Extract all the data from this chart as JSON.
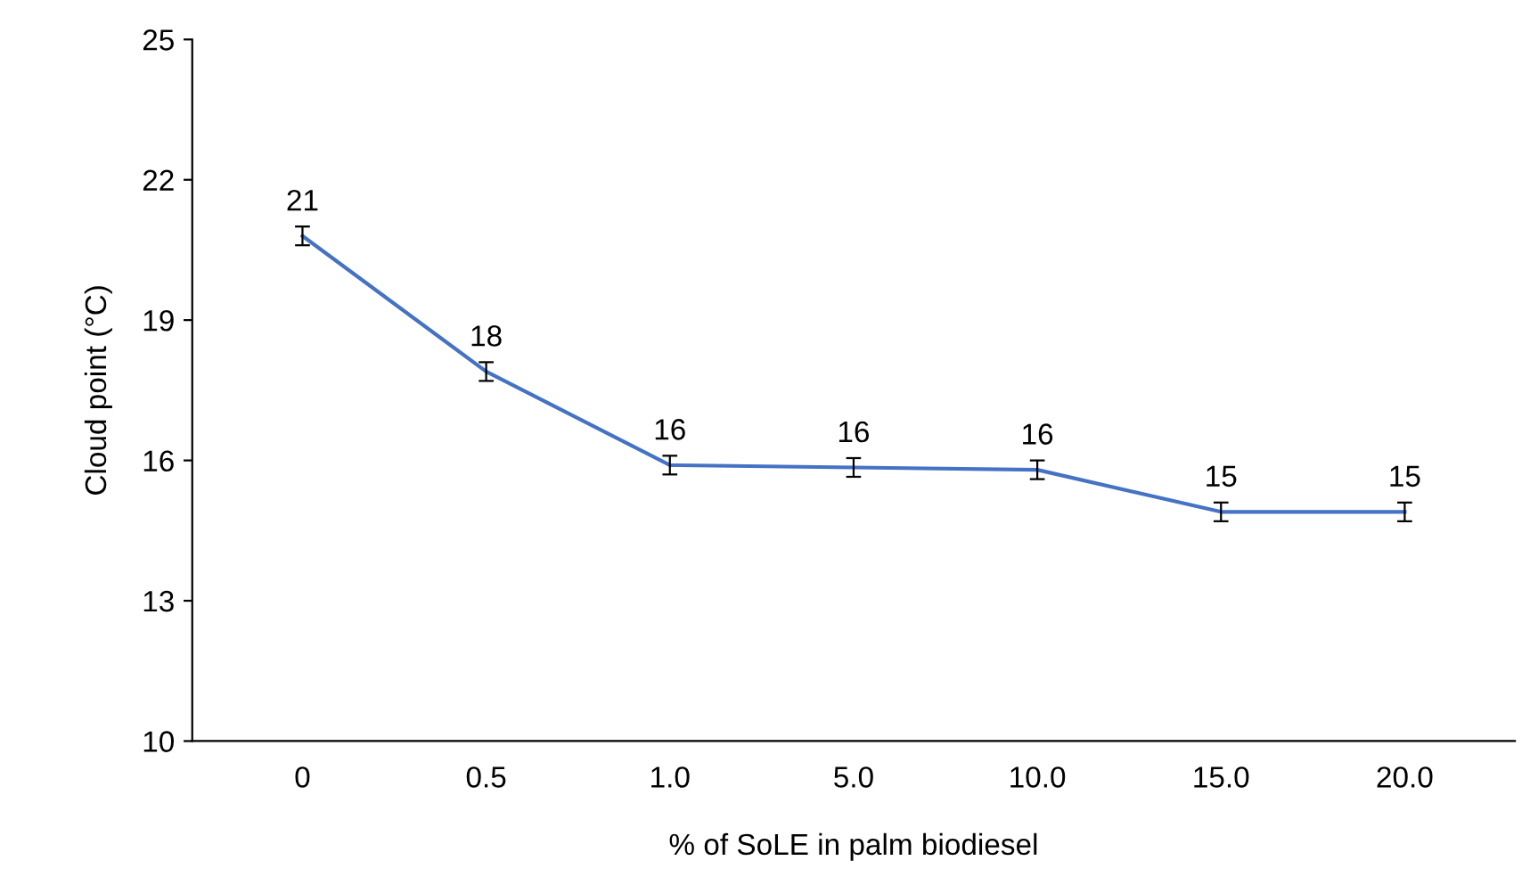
{
  "chart_data": {
    "type": "line",
    "xlabel": "% of SoLE in palm biodiesel",
    "ylabel": "Cloud point (°C)",
    "categories": [
      "0",
      "0.5",
      "1.0",
      "5.0",
      "10.0",
      "15.0",
      "20.0"
    ],
    "series": [
      {
        "color": "#4472c4",
        "values": [
          20.8,
          17.9,
          15.9,
          15.85,
          15.8,
          14.9,
          14.9
        ],
        "errors": [
          0.2,
          0.2,
          0.2,
          0.2,
          0.2,
          0.2,
          0.2
        ],
        "value_labels": [
          "21",
          "18",
          "16",
          "16",
          "16",
          "15",
          "15"
        ]
      }
    ],
    "ylim": [
      10,
      25
    ],
    "yticks": [
      10,
      13,
      16,
      19,
      22,
      25
    ],
    "grid": false,
    "legend": false,
    "marker": "none",
    "line_style": "solid"
  }
}
